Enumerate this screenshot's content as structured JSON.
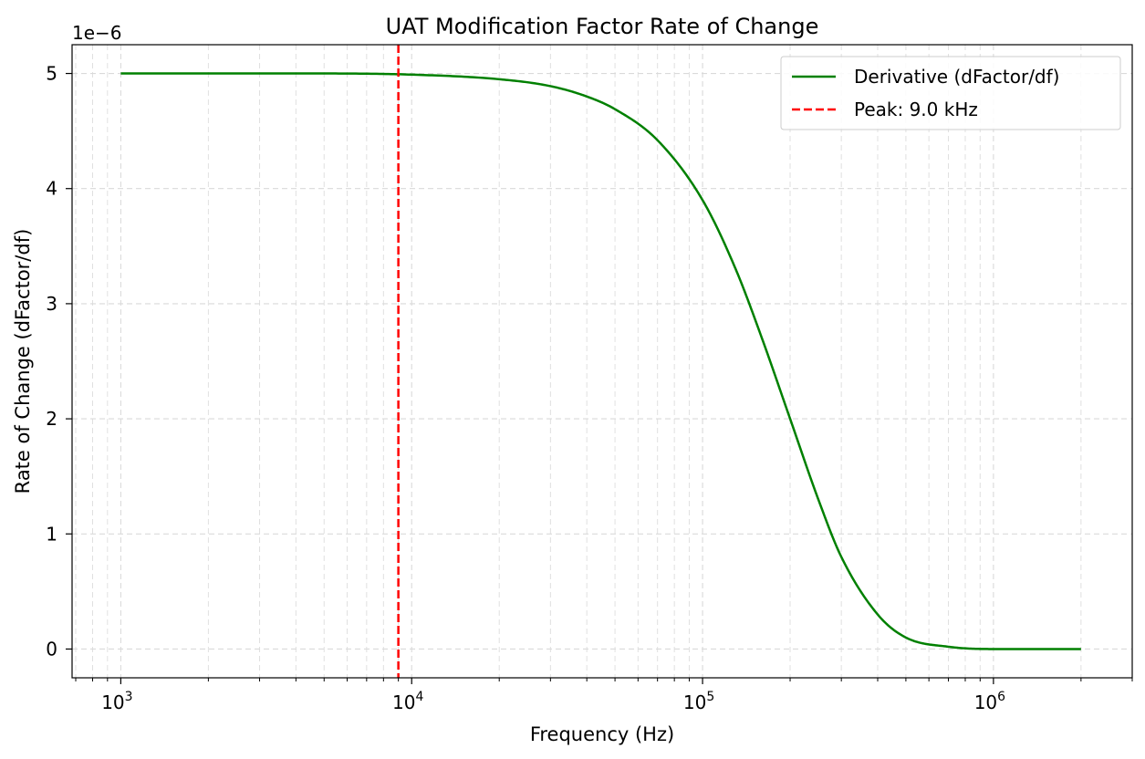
{
  "chart_data": {
    "type": "line",
    "title": "UAT Modification Factor Rate of Change",
    "xlabel": "Frequency (Hz)",
    "ylabel": "Rate of Change (dFactor/df)",
    "x_scale": "log",
    "xlim": [
      680,
      3000000
    ],
    "ylim": [
      -0.25,
      5.25
    ],
    "y_offset_text": "1e−6",
    "x_ticks": [
      {
        "value": 1000,
        "base": "10",
        "exp": "3"
      },
      {
        "value": 10000,
        "base": "10",
        "exp": "4"
      },
      {
        "value": 100000,
        "base": "10",
        "exp": "5"
      },
      {
        "value": 1000000,
        "base": "10",
        "exp": "6"
      }
    ],
    "y_ticks": [
      0,
      1,
      2,
      3,
      4,
      5
    ],
    "grid": true,
    "legend_position": "top-right",
    "series": [
      {
        "name": "Derivative (dFactor/df)",
        "color": "#008000",
        "style": "solid",
        "x": [
          1000,
          5000,
          10000,
          20000,
          30000,
          40000,
          50000,
          70000,
          100000,
          130000,
          160000,
          200000,
          250000,
          300000,
          400000,
          500000,
          700000,
          1000000,
          2000000
        ],
        "y": [
          5.0,
          5.0,
          4.99,
          4.95,
          4.89,
          4.8,
          4.69,
          4.42,
          3.9,
          3.3,
          2.7,
          2.0,
          1.3,
          0.8,
          0.3,
          0.1,
          0.02,
          0.0,
          0.0
        ]
      },
      {
        "name": "Peak: 9.0 kHz",
        "color": "#ff0000",
        "style": "dashed",
        "vline_x": 9000
      }
    ]
  }
}
